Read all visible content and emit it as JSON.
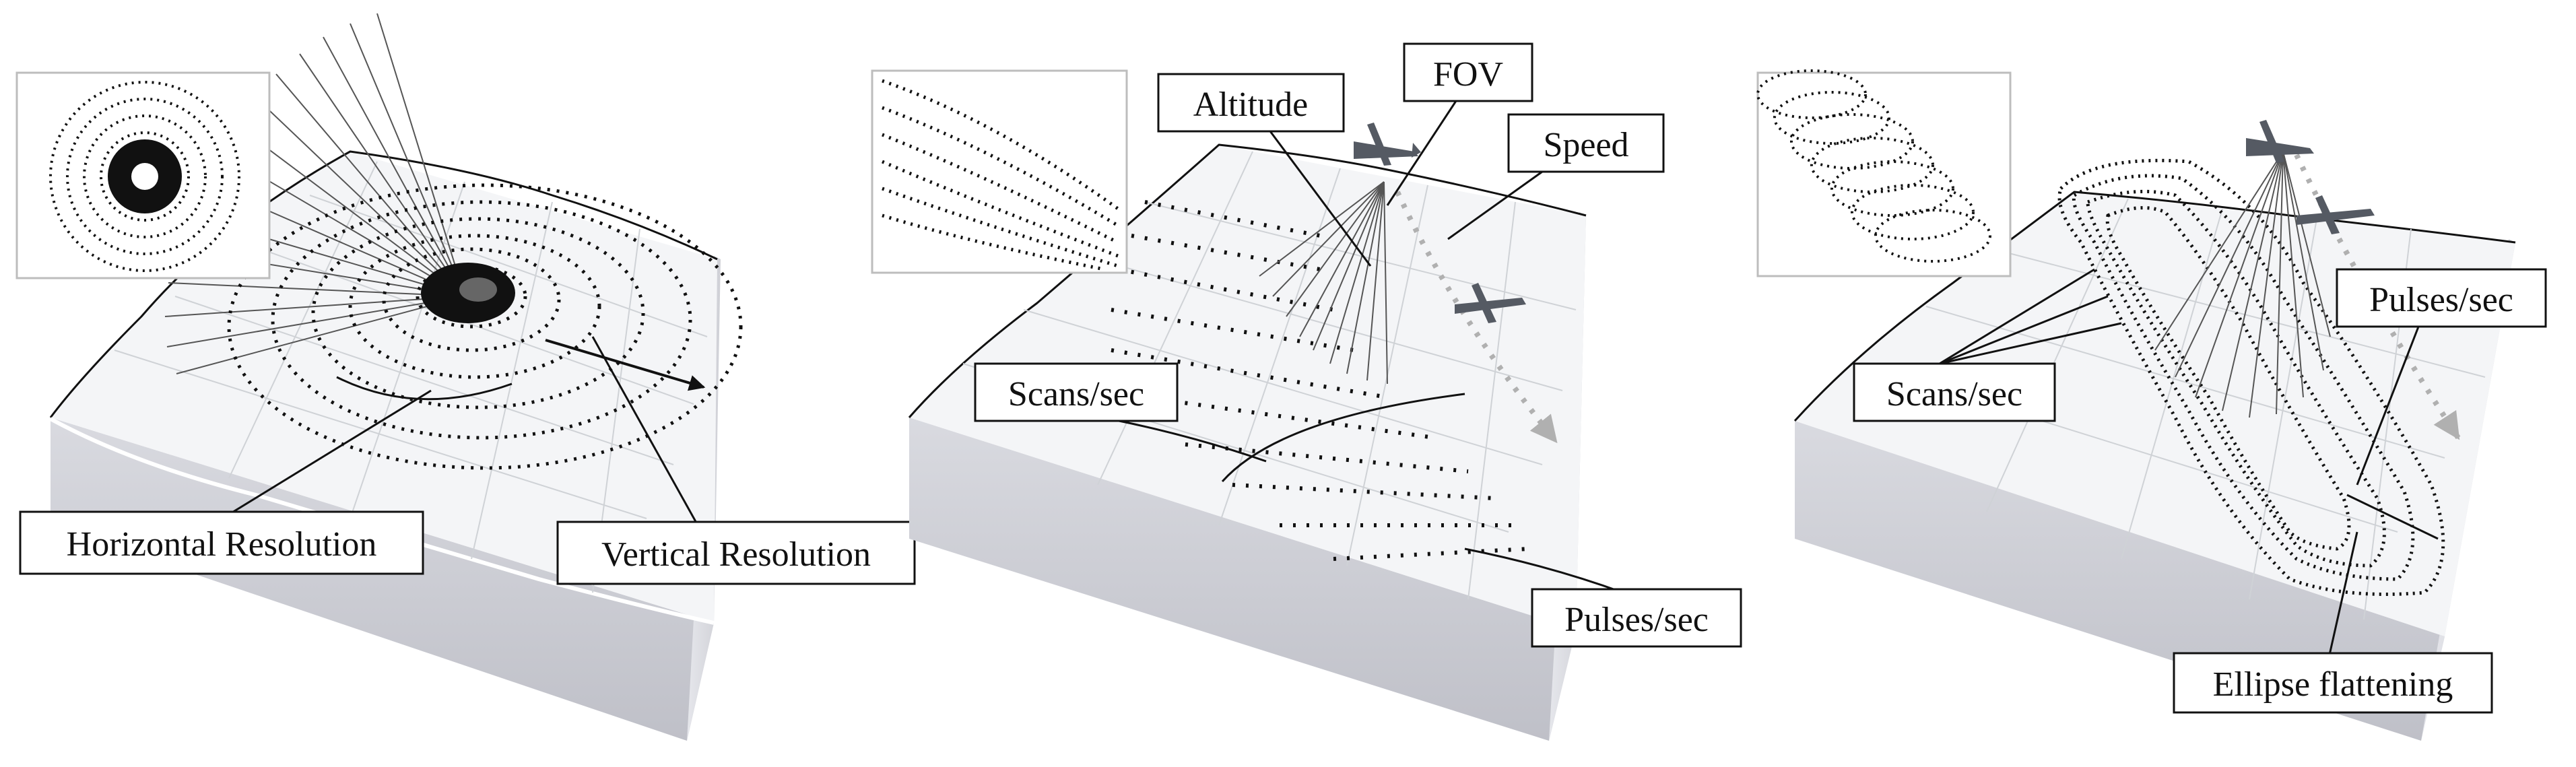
{
  "panels": [
    {
      "id": "static",
      "labels": {
        "horizontal_resolution": "Horizontal Resolution",
        "vertical_resolution": "Vertical Resolution"
      }
    },
    {
      "id": "linear",
      "labels": {
        "altitude": "Altitude",
        "fov": "FOV",
        "speed": "Speed",
        "scans_sec": "Scans/sec",
        "pulses_sec": "Pulses/sec"
      }
    },
    {
      "id": "elliptical",
      "labels": {
        "scans_sec": "Scans/sec",
        "pulses_sec": "Pulses/sec",
        "ellipse_flattening": "Ellipse flattening"
      }
    }
  ],
  "colors": {
    "terrain_top": "#f4f5f7",
    "terrain_side": "#c9cad0",
    "points": "#111111",
    "trajectory": "#b0b0b0",
    "aircraft": "#555a63"
  },
  "icons": [
    "aircraft-icon",
    "sensor-icon"
  ]
}
